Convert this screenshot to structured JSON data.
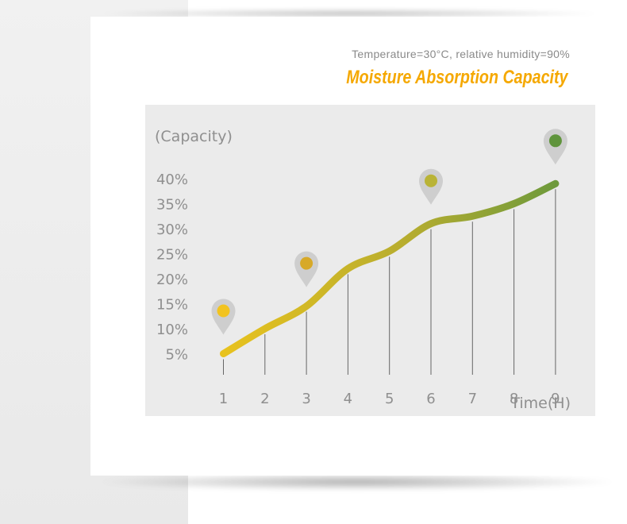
{
  "header": {
    "subtitle": "Temperature=30°C, relative humidity=90%",
    "title": "Moisture Absorption Capacity"
  },
  "colors": {
    "title": "#f5a800",
    "curve_start": "#e8c21e",
    "curve_end": "#6e9a3c",
    "panel_bg": "#ebebeb",
    "text_gray": "#8f8f8f"
  },
  "chart_data": {
    "type": "line",
    "title": "Moisture Absorption Capacity",
    "subtitle": "Temperature=30°C, relative humidity=90%",
    "ylabel": "(Capacity)",
    "xlabel": "Time(H)",
    "y_ticks": [
      "40%",
      "35%",
      "30%",
      "25%",
      "20%",
      "15%",
      "10%",
      "5%"
    ],
    "x_ticks": [
      "1",
      "2",
      "3",
      "4",
      "5",
      "6",
      "7",
      "8",
      "9"
    ],
    "ylim": [
      5,
      40
    ],
    "x": [
      1,
      2,
      3,
      4,
      5,
      6,
      7,
      8,
      9
    ],
    "series": [
      {
        "values": [
          5,
          10,
          14.5,
          22,
          25.5,
          31,
          32.5,
          35,
          39
        ]
      }
    ],
    "markers": [
      {
        "x": 1,
        "color": "#f2c31f"
      },
      {
        "x": 3,
        "color": "#d7a928"
      },
      {
        "x": 6,
        "color": "#b9b336"
      },
      {
        "x": 9,
        "color": "#5f943c"
      }
    ],
    "grid": false,
    "legend": "none"
  }
}
